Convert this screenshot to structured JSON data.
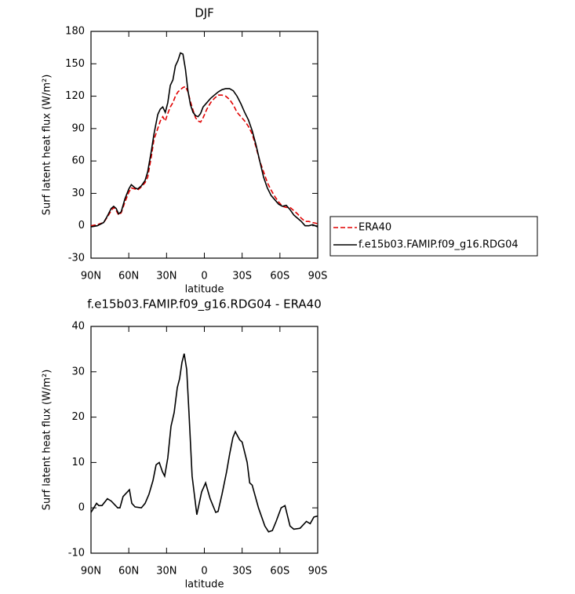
{
  "chart_data": [
    {
      "type": "line",
      "title": "DJF",
      "xlabel": "latitude",
      "ylabel": "Surf latent heat flux (W/m²)",
      "x": [
        90,
        85,
        80,
        77,
        74,
        72,
        70,
        68,
        66,
        63,
        60,
        58,
        55,
        53,
        50,
        47,
        45,
        42,
        40,
        37,
        35,
        33,
        31,
        29,
        27,
        25,
        23,
        21,
        19,
        17,
        15,
        13,
        11,
        9,
        7,
        5,
        3,
        1,
        -2,
        -5,
        -8,
        -11,
        -14,
        -17,
        -20,
        -23,
        -26,
        -29,
        -32,
        -35,
        -38,
        -41,
        -44,
        -47,
        -50,
        -53,
        -56,
        -59,
        -62,
        -65,
        -68,
        -71,
        -74,
        -77,
        -80,
        -83,
        -86,
        -90
      ],
      "series": [
        {
          "name": "ERA40",
          "color": "#e00000",
          "linestyle": "dashed",
          "values": [
            0,
            1,
            3,
            8,
            14,
            17,
            14,
            10,
            12,
            22,
            31,
            35,
            34,
            33,
            36,
            40,
            45,
            65,
            80,
            90,
            97,
            101,
            97,
            104,
            110,
            114,
            120,
            124,
            126,
            128,
            129,
            124,
            115,
            107,
            100,
            97,
            96,
            100,
            108,
            114,
            118,
            121,
            121,
            120,
            117,
            112,
            105,
            101,
            97,
            92,
            85,
            73,
            60,
            50,
            40,
            33,
            27,
            22,
            18,
            17,
            17,
            14,
            11,
            7,
            4,
            4,
            3,
            2
          ]
        },
        {
          "name": "f.e15b03.FAMIP.f09_g16.RDG04",
          "color": "#000000",
          "linestyle": "solid",
          "values": [
            -1,
            0,
            3,
            9,
            16,
            18,
            16,
            11,
            13,
            25,
            34,
            38,
            35,
            34,
            37,
            42,
            50,
            70,
            85,
            103,
            108,
            110,
            105,
            114,
            130,
            135,
            148,
            153,
            160,
            159,
            145,
            125,
            112,
            105,
            102,
            101,
            104,
            110,
            114,
            118,
            121,
            124,
            126,
            127,
            127,
            125,
            120,
            113,
            105,
            98,
            88,
            75,
            60,
            45,
            35,
            28,
            24,
            20,
            18,
            19,
            15,
            10,
            7,
            4,
            0,
            0,
            1,
            -1
          ]
        }
      ],
      "xlim": [
        90,
        -90
      ],
      "xticks": [
        {
          "value": 90,
          "label": "90N"
        },
        {
          "value": 60,
          "label": "60N"
        },
        {
          "value": 30,
          "label": "30N"
        },
        0,
        {
          "value": -30,
          "label": "30S"
        },
        {
          "value": -60,
          "label": "60S"
        },
        {
          "value": -90,
          "label": "90S"
        }
      ],
      "ylim": [
        -30,
        180
      ],
      "yticks": [
        -30,
        0,
        30,
        60,
        90,
        120,
        150,
        180
      ],
      "legend": "right"
    },
    {
      "type": "line",
      "title": "f.e15b03.FAMIP.f09_g16.RDG04 - ERA40",
      "xlabel": "latitude",
      "ylabel": "Surf latent heat flux (W/m²)",
      "x": [
        90,
        85.6,
        83.8,
        81.3,
        77,
        74,
        68.8,
        67,
        64.5,
        59.5,
        57.6,
        55,
        50,
        47,
        44,
        40.8,
        38.3,
        35.8,
        33.3,
        31.5,
        29,
        26.5,
        24,
        21.5,
        19.6,
        17.8,
        16,
        14,
        12.2,
        9.7,
        6,
        2.2,
        -1,
        -4.6,
        -9,
        -10.9,
        -14,
        -17.7,
        -20.2,
        -22.7,
        -24.6,
        -28,
        -30,
        -34,
        -36,
        -38,
        -43,
        -48,
        -51,
        -54,
        -57,
        -61,
        -64,
        -68,
        -71,
        -76,
        -81,
        -84,
        -87,
        -90
      ],
      "values": [
        -1,
        1,
        0.5,
        0.5,
        2,
        1.5,
        0,
        0,
        2.5,
        4,
        1,
        0.2,
        0,
        1,
        3,
        6,
        9.5,
        10,
        8,
        7,
        11,
        18,
        21,
        26.5,
        28.5,
        32,
        34,
        30.5,
        21,
        7,
        -1.5,
        3.5,
        5.5,
        2,
        -1,
        -0.8,
        3,
        8,
        12,
        15.5,
        16.8,
        15,
        14.5,
        10,
        5.5,
        5,
        0,
        -4,
        -5.3,
        -5,
        -3,
        0,
        0.5,
        -4,
        -4.7,
        -4.5,
        -3,
        -3.5,
        -2,
        -1.8
      ],
      "color": "#000000",
      "xlim": [
        90,
        -90
      ],
      "xticks": [
        {
          "value": 90,
          "label": "90N"
        },
        {
          "value": 60,
          "label": "60N"
        },
        {
          "value": 30,
          "label": "30N"
        },
        0,
        {
          "value": -30,
          "label": "30S"
        },
        {
          "value": -60,
          "label": "60S"
        },
        {
          "value": -90,
          "label": "90S"
        }
      ],
      "ylim": [
        -10,
        40
      ],
      "yticks": [
        -10,
        0,
        10,
        20,
        30,
        40
      ]
    }
  ]
}
